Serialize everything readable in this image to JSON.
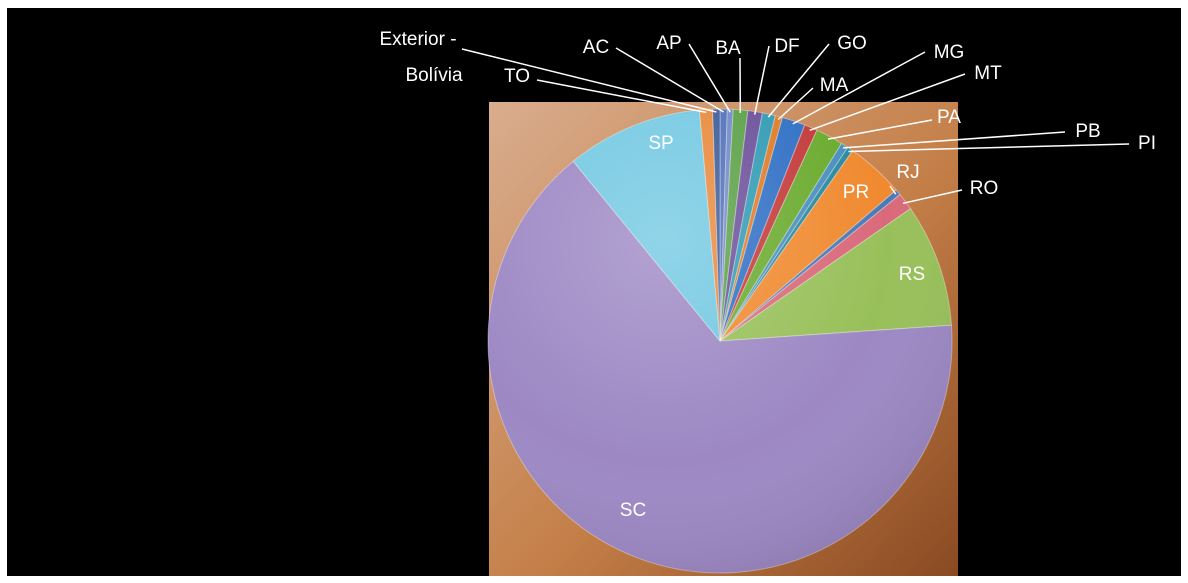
{
  "chart_data": {
    "type": "pie",
    "title": "",
    "slices": [
      {
        "label": "AC",
        "value": 0.5,
        "color": "#4f6fb8"
      },
      {
        "label": "AP",
        "value": 0.4,
        "color": "#6f88c8"
      },
      {
        "label": "BA",
        "value": 1.0,
        "color": "#5aa046"
      },
      {
        "label": "DF",
        "value": 1.0,
        "color": "#6b4f9a"
      },
      {
        "label": "GO",
        "value": 0.9,
        "color": "#2f9bb3"
      },
      {
        "label": "MA",
        "value": 0.5,
        "color": "#e07a26"
      },
      {
        "label": "MG",
        "value": 1.6,
        "color": "#2f6fc4"
      },
      {
        "label": "MT",
        "value": 0.9,
        "color": "#c43a3a"
      },
      {
        "label": "PA",
        "value": 1.9,
        "color": "#6aab2e"
      },
      {
        "label": "PB",
        "value": 0.5,
        "color": "#4a8fc0"
      },
      {
        "label": "PI",
        "value": 0.4,
        "color": "#2a8aa0"
      },
      {
        "label": "PR",
        "value": 4.0,
        "color": "#f08a30"
      },
      {
        "label": "RJ",
        "value": 0.4,
        "color": "#4a7ab8"
      },
      {
        "label": "RO",
        "value": 1.2,
        "color": "#d96a7a"
      },
      {
        "label": "RS",
        "value": 8.5,
        "color": "#98c05a"
      },
      {
        "label": "SC",
        "value": 64.6,
        "color": "#9d88c4"
      },
      {
        "label": "SP",
        "value": 9.4,
        "color": "#72c8e2"
      },
      {
        "label": "TO",
        "value": 0.9,
        "color": "#e8883a"
      },
      {
        "label": "Exterior - Bolívia",
        "value": 0.5,
        "color": "#3a5a9a"
      }
    ],
    "start_angle_deg": 0,
    "direction": "clockwise",
    "legend": "none",
    "data_labels": "category name"
  },
  "style": {
    "frame_background": "#000000",
    "plot_background": "#c68a52",
    "label_color": "#ffffff",
    "leader_line_color": "#ffffff"
  }
}
